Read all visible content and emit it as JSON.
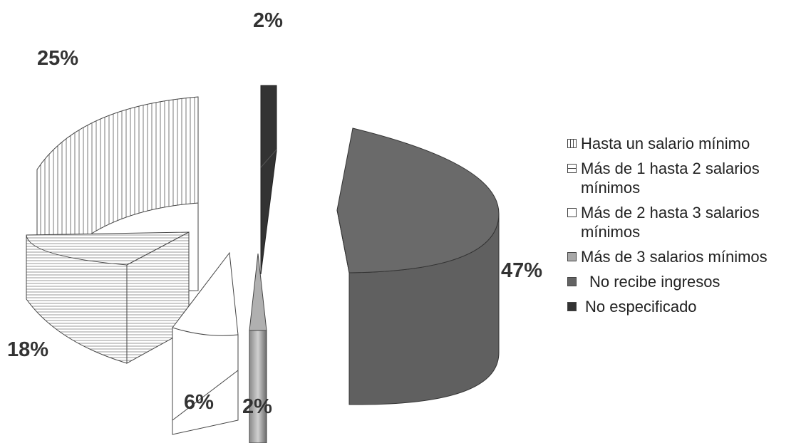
{
  "chart_data": {
    "type": "pie",
    "style": "3d exploded",
    "categories": [
      "Hasta un salario mínimo",
      "Más de 1 hasta 2 salarios mínimos",
      "Más de 2 hasta 3 salarios mínimos",
      "Más de 3 salarios mínimos",
      "No recibe ingresos",
      "No especificado"
    ],
    "values": [
      25,
      18,
      6,
      2,
      47,
      2
    ],
    "data_labels": [
      "25%",
      "18%",
      "6%",
      "2%",
      "47%",
      "2%"
    ],
    "colors": [
      "#ffffff",
      "#ffffff",
      "#ffffff",
      "#a8a8a8",
      "#636363",
      "#333333"
    ],
    "patterns": [
      "vertical-lines",
      "horizontal-lines",
      "none",
      "none",
      "none",
      "none"
    ],
    "legend_position": "right",
    "legend_entries": [
      "Hasta un salario mínimo",
      "Más de 1 hasta 2 salarios mínimos",
      "Más de 2 hasta 3 salarios mínimos",
      "Más de 3 salarios mínimos",
      "No recibe ingresos",
      "No especificado"
    ]
  }
}
